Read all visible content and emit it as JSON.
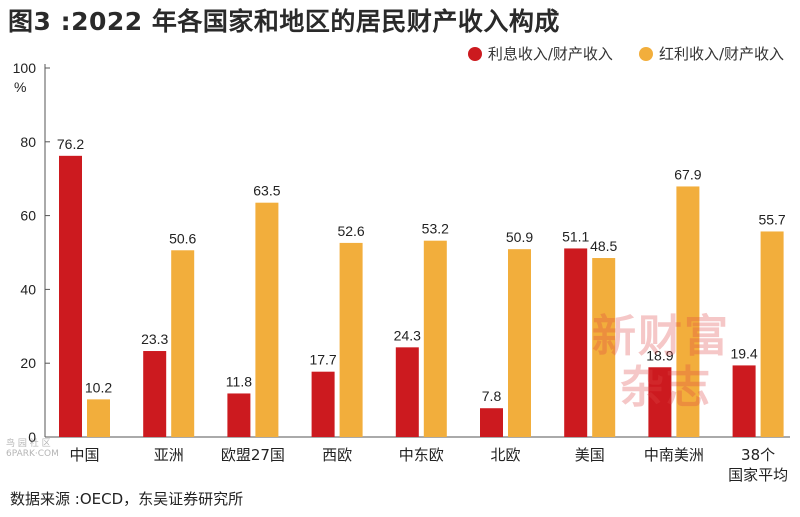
{
  "title": "图3 :2022 年各国家和地区的居民财产收入构成",
  "source": "数据来源 :OECD，东吴证券研究所",
  "watermark": {
    "line1": "新财富",
    "line2": "杂志"
  },
  "watermark_small": {
    "line1": "鸟 园 社 区",
    "line2": "6PARK·COM"
  },
  "colors": {
    "interest": "#cc1a1f",
    "dividend": "#f2ae3c",
    "axis": "#555555",
    "text": "#222222"
  },
  "chart_data": {
    "type": "bar",
    "ylabel": "%",
    "ylim": [
      0,
      100
    ],
    "yticks": [
      0,
      20,
      40,
      60,
      80,
      100
    ],
    "categories": [
      "中国",
      "亚洲",
      "欧盟27国",
      "西欧",
      "中东欧",
      "北欧",
      "美国",
      "中南美洲",
      "38个国家平均"
    ],
    "category_lines": [
      [
        "中国"
      ],
      [
        "亚洲"
      ],
      [
        "欧盟27国"
      ],
      [
        "西欧"
      ],
      [
        "中东欧"
      ],
      [
        "北欧"
      ],
      [
        "美国"
      ],
      [
        "中南美洲"
      ],
      [
        "38个",
        "国家平均"
      ]
    ],
    "series": [
      {
        "name": "利息收入/财产收入",
        "values": [
          76.2,
          23.3,
          11.8,
          17.7,
          24.3,
          7.8,
          51.1,
          18.9,
          19.4
        ]
      },
      {
        "name": "红利收入/财产收入",
        "values": [
          10.2,
          50.6,
          63.5,
          52.6,
          53.2,
          50.9,
          48.5,
          67.9,
          55.7
        ]
      }
    ],
    "legend_position": "top-right",
    "grid": false
  }
}
